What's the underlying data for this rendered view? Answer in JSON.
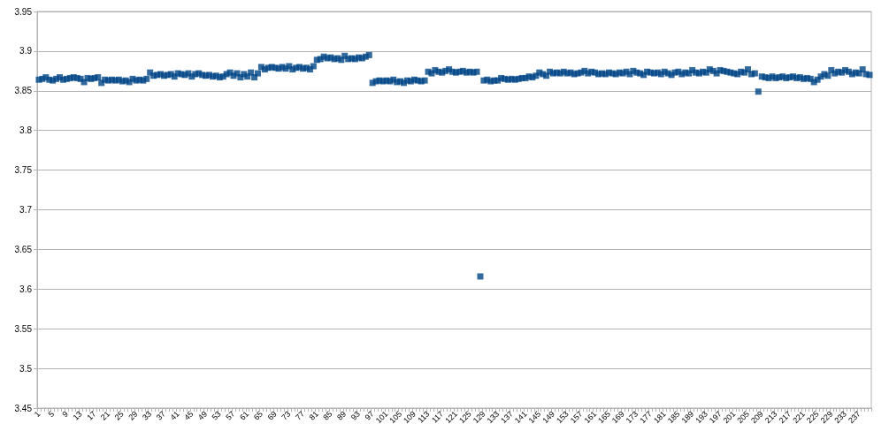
{
  "chart_data": {
    "type": "scatter",
    "marker": "square",
    "color": "#004586",
    "grid": "y",
    "ylim": [
      3.45,
      3.95
    ],
    "yticks": [
      3.45,
      3.5,
      3.55,
      3.6,
      3.65,
      3.7,
      3.75,
      3.8,
      3.85,
      3.9,
      3.95
    ],
    "categories": [
      "1",
      null,
      null,
      null,
      "5",
      null,
      null,
      null,
      "9",
      null,
      null,
      null,
      "13",
      null,
      null,
      null,
      "17",
      null,
      null,
      null,
      "21",
      null,
      null,
      null,
      "25",
      null,
      null,
      null,
      "29",
      null,
      null,
      null,
      "33",
      null,
      null,
      null,
      "37",
      null,
      null,
      null,
      "41",
      null,
      null,
      null,
      "45",
      null,
      null,
      null,
      "49",
      null,
      null,
      null,
      "53",
      null,
      null,
      null,
      "57",
      null,
      null,
      null,
      "61",
      null,
      null,
      null,
      "65",
      null,
      null,
      null,
      "69",
      null,
      null,
      null,
      "73",
      null,
      null,
      null,
      "77",
      null,
      null,
      null,
      "81",
      null,
      null,
      null,
      "85",
      null,
      null,
      null,
      "89",
      null,
      null,
      null,
      "93",
      null,
      null,
      null,
      "97",
      null,
      null,
      null,
      "101",
      null,
      null,
      null,
      "105",
      null,
      null,
      null,
      "109",
      null,
      null,
      null,
      "113",
      null,
      null,
      null,
      "117",
      null,
      null,
      null,
      "121",
      null,
      null,
      null,
      "125",
      null,
      null,
      null,
      "129",
      null,
      null,
      null,
      "133",
      null,
      null,
      null,
      "137",
      null,
      null,
      null,
      "141",
      null,
      null,
      null,
      "145",
      null,
      null,
      null,
      "149",
      null,
      null,
      null,
      "153",
      null,
      null,
      null,
      "157",
      null,
      null,
      null,
      "161",
      null,
      null,
      null,
      "165",
      null,
      null,
      null,
      "169",
      null,
      null,
      null,
      "173",
      null,
      null,
      null,
      "177",
      null,
      null,
      null,
      "181",
      null,
      null,
      null,
      "185",
      null,
      null,
      null,
      "189",
      null,
      null,
      null,
      "193",
      null,
      null,
      null,
      "197",
      null,
      null,
      null,
      "201",
      null,
      null,
      null,
      "205",
      null,
      null,
      null,
      "209",
      null,
      null,
      null,
      "213",
      null,
      null,
      null,
      "217",
      null,
      null,
      null,
      "221",
      null,
      null,
      null,
      "225",
      null,
      null,
      null,
      "229",
      null,
      null,
      null,
      "233",
      null,
      null,
      null,
      "237",
      null,
      null,
      null
    ],
    "values": [
      3.864,
      3.865,
      3.867,
      3.864,
      3.863,
      3.865,
      3.867,
      3.864,
      3.865,
      3.866,
      3.867,
      3.866,
      3.865,
      3.861,
      3.866,
      3.865,
      3.866,
      3.867,
      3.86,
      3.864,
      3.863,
      3.864,
      3.863,
      3.864,
      3.862,
      3.863,
      3.861,
      3.865,
      3.863,
      3.864,
      3.863,
      3.865,
      3.873,
      3.869,
      3.87,
      3.871,
      3.869,
      3.87,
      3.871,
      3.868,
      3.872,
      3.871,
      3.87,
      3.872,
      3.868,
      3.871,
      3.872,
      3.87,
      3.869,
      3.87,
      3.868,
      3.869,
      3.867,
      3.868,
      3.871,
      3.873,
      3.869,
      3.872,
      3.867,
      3.871,
      3.868,
      3.873,
      3.867,
      3.872,
      3.88,
      3.877,
      3.879,
      3.88,
      3.879,
      3.878,
      3.88,
      3.878,
      3.881,
      3.877,
      3.879,
      3.88,
      3.878,
      3.879,
      3.877,
      3.881,
      3.889,
      3.89,
      3.893,
      3.891,
      3.892,
      3.89,
      3.891,
      3.889,
      3.894,
      3.89,
      3.891,
      3.89,
      3.892,
      3.891,
      3.893,
      3.895,
      3.86,
      3.862,
      3.863,
      3.862,
      3.863,
      3.862,
      3.864,
      3.861,
      3.862,
      3.86,
      3.863,
      3.862,
      3.864,
      3.863,
      3.862,
      3.863,
      3.874,
      3.872,
      3.876,
      3.874,
      3.873,
      3.875,
      3.877,
      3.874,
      3.873,
      3.874,
      3.875,
      3.873,
      3.874,
      3.873,
      3.874,
      3.616,
      3.863,
      3.864,
      3.862,
      3.863,
      3.863,
      3.866,
      3.865,
      3.864,
      3.865,
      3.864,
      3.865,
      3.866,
      3.866,
      3.868,
      3.867,
      3.869,
      3.873,
      3.871,
      3.869,
      3.874,
      3.872,
      3.873,
      3.872,
      3.874,
      3.872,
      3.873,
      3.871,
      3.872,
      3.873,
      3.875,
      3.872,
      3.874,
      3.873,
      3.871,
      3.872,
      3.871,
      3.873,
      3.872,
      3.871,
      3.873,
      3.872,
      3.874,
      3.871,
      3.875,
      3.873,
      3.872,
      3.87,
      3.874,
      3.873,
      3.872,
      3.873,
      3.871,
      3.874,
      3.872,
      3.87,
      3.873,
      3.874,
      3.871,
      3.873,
      3.872,
      3.876,
      3.873,
      3.872,
      3.874,
      3.873,
      3.877,
      3.875,
      3.872,
      3.876,
      3.875,
      3.874,
      3.873,
      3.872,
      3.871,
      3.874,
      3.873,
      3.877,
      3.871,
      3.872,
      3.849,
      3.868,
      3.867,
      3.866,
      3.868,
      3.866,
      3.867,
      3.868,
      3.866,
      3.867,
      3.868,
      3.866,
      3.867,
      3.865,
      3.866,
      3.865,
      3.861,
      3.864,
      3.868,
      3.871,
      3.869,
      3.876,
      3.872,
      3.874,
      3.873,
      3.876,
      3.874,
      3.871,
      3.873,
      3.872,
      3.877,
      3.871,
      3.87
    ]
  }
}
